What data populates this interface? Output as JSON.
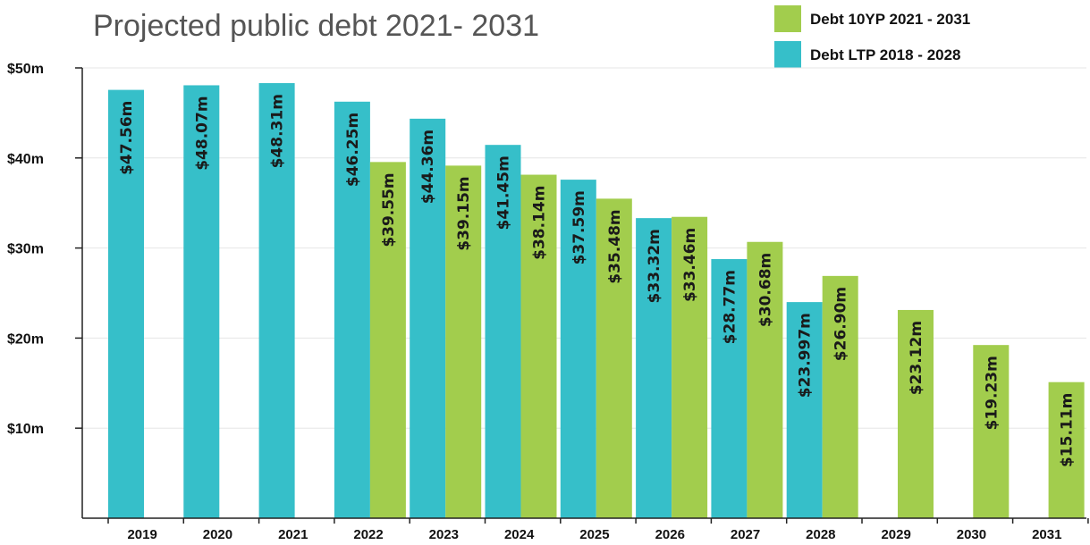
{
  "chart_data": {
    "type": "bar",
    "title": "Projected public debt 2021- 2031",
    "categories": [
      "2019",
      "2020",
      "2021",
      "2022",
      "2023",
      "2024",
      "2025",
      "2026",
      "2027",
      "2028",
      "2029",
      "2030",
      "2031"
    ],
    "ylim": [
      0,
      50
    ],
    "yticks": [
      {
        "value": 10,
        "label": "$10m"
      },
      {
        "value": 20,
        "label": "$20m"
      },
      {
        "value": 30,
        "label": "$30m"
      },
      {
        "value": 40,
        "label": "$40m"
      },
      {
        "value": 50,
        "label": "$50m"
      }
    ],
    "grid": true,
    "legend_position": "top-right",
    "series": [
      {
        "name": "Debt LTP 2018 - 2028",
        "color": "#36bfc9",
        "values": [
          47.56,
          48.07,
          48.31,
          46.25,
          44.36,
          41.45,
          37.59,
          33.32,
          28.77,
          23.997,
          null,
          null,
          null
        ],
        "labels": [
          "$47.56m",
          "$48.07m",
          "$48.31m",
          "$46.25m",
          "$44.36m",
          "$41.45m",
          "$37.59m",
          "$33.32m",
          "$28.77m",
          "$23.997m",
          null,
          null,
          null
        ]
      },
      {
        "name": "Debt 10YP 2021 - 2031",
        "color": "#a2cd4d",
        "values": [
          null,
          null,
          null,
          39.55,
          39.15,
          38.14,
          35.48,
          33.46,
          30.68,
          26.9,
          23.12,
          19.23,
          15.11
        ],
        "labels": [
          null,
          null,
          null,
          "$39.55m",
          "$39.15m",
          "$38.14m",
          "$35.48m",
          "$33.46m",
          "$30.68m",
          "$26.90m",
          "$23.12m",
          "$19.23m",
          "$15.11m"
        ]
      }
    ],
    "legend_order": [
      1,
      0
    ]
  }
}
